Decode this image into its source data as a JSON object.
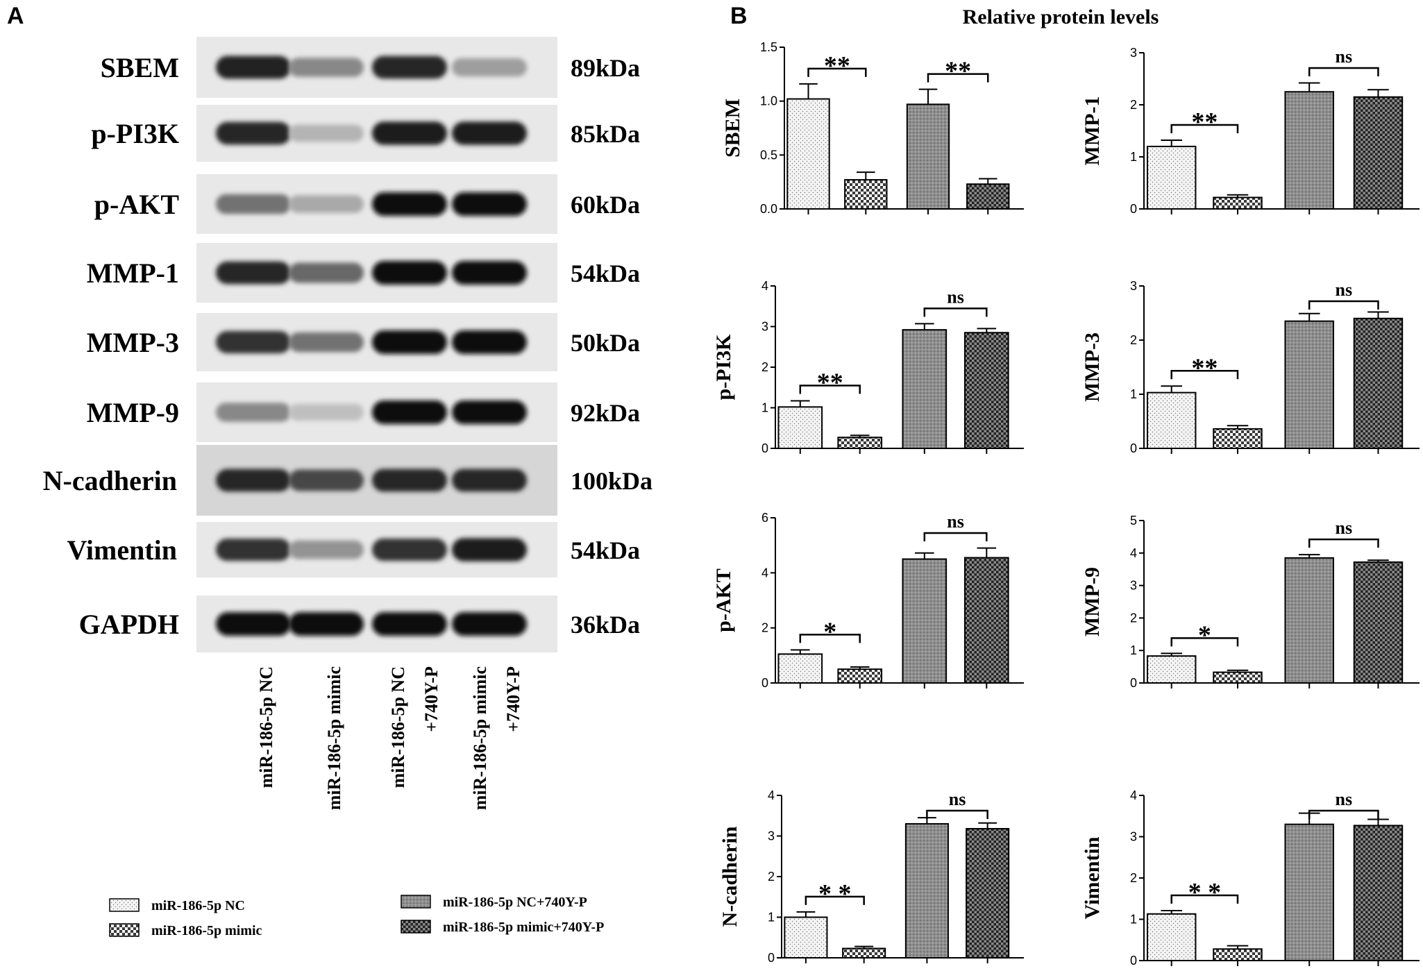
{
  "panels": {
    "a_label": "A",
    "b_label": "B",
    "b_title": "Relative protein levels"
  },
  "blot": {
    "rows": [
      {
        "protein": "SBEM",
        "kda": "89kDa",
        "intensity": [
          0.92,
          0.45,
          0.9,
          0.35
        ]
      },
      {
        "protein": "p-PI3K",
        "kda": "85kDa",
        "intensity": [
          0.9,
          0.25,
          0.95,
          0.95
        ]
      },
      {
        "protein": "p-AKT",
        "kda": "60kDa",
        "intensity": [
          0.55,
          0.3,
          1.0,
          1.0
        ]
      },
      {
        "protein": "MMP-1",
        "kda": "54kDa",
        "intensity": [
          0.9,
          0.6,
          1.0,
          1.0
        ]
      },
      {
        "protein": "MMP-3",
        "kda": "50kDa",
        "intensity": [
          0.85,
          0.55,
          1.0,
          1.0
        ]
      },
      {
        "protein": "MMP-9",
        "kda": "92kDa",
        "intensity": [
          0.45,
          0.2,
          1.0,
          1.0
        ]
      },
      {
        "protein": "N-cadherin",
        "kda": "100kDa",
        "intensity": [
          0.9,
          0.75,
          0.9,
          0.9
        ]
      },
      {
        "protein": "Vimentin",
        "kda": "54kDa",
        "intensity": [
          0.85,
          0.4,
          0.85,
          0.95
        ]
      },
      {
        "protein": "GAPDH",
        "kda": "36kDa",
        "intensity": [
          1.0,
          1.0,
          1.0,
          1.0
        ]
      }
    ],
    "lanes": [
      [
        "miR-186-5p NC"
      ],
      [
        "miR-186-5p mimic"
      ],
      [
        "miR-186-5p NC",
        "+740Y-P"
      ],
      [
        "miR-186-5p mimic",
        "+740Y-P"
      ]
    ]
  },
  "legend": [
    {
      "label": "miR-186-5p NC",
      "pattern": "pat0"
    },
    {
      "label": "miR-186-5p mimic",
      "pattern": "pat1"
    },
    {
      "label": "miR-186-5p NC+740Y-P",
      "pattern": "pat2"
    },
    {
      "label": "miR-186-5p mimic+740Y-P",
      "pattern": "pat3"
    }
  ],
  "chart_data": [
    {
      "type": "bar",
      "ylabel": "SBEM",
      "ylim": [
        0,
        1.5
      ],
      "yticks": [
        "0.0",
        "0.5",
        "1.0",
        "1.5"
      ],
      "values": [
        1.02,
        0.27,
        0.97,
        0.23
      ],
      "errors": [
        0.14,
        0.07,
        0.14,
        0.05
      ],
      "significance": [
        {
          "bars": [
            0,
            1
          ],
          "label": "**"
        },
        {
          "bars": [
            2,
            3
          ],
          "label": "**"
        }
      ]
    },
    {
      "type": "bar",
      "ylabel": "MMP-1",
      "ylim": [
        0,
        3
      ],
      "yticks": [
        "0",
        "1",
        "2",
        "3"
      ],
      "values": [
        1.2,
        0.22,
        2.25,
        2.15
      ],
      "errors": [
        0.12,
        0.05,
        0.17,
        0.14
      ],
      "significance": [
        {
          "bars": [
            0,
            1
          ],
          "label": "**"
        },
        {
          "bars": [
            2,
            3
          ],
          "label": "ns"
        }
      ]
    },
    {
      "type": "bar",
      "ylabel": "p-PI3K",
      "ylim": [
        0,
        4
      ],
      "yticks": [
        "0",
        "1",
        "2",
        "3",
        "4"
      ],
      "values": [
        1.02,
        0.27,
        2.92,
        2.85
      ],
      "errors": [
        0.15,
        0.05,
        0.15,
        0.1
      ],
      "significance": [
        {
          "bars": [
            0,
            1
          ],
          "label": "**"
        },
        {
          "bars": [
            2,
            3
          ],
          "label": "ns"
        }
      ]
    },
    {
      "type": "bar",
      "ylabel": "MMP-3",
      "ylim": [
        0,
        3
      ],
      "yticks": [
        "0",
        "1",
        "2",
        "3"
      ],
      "values": [
        1.03,
        0.36,
        2.35,
        2.4
      ],
      "errors": [
        0.12,
        0.06,
        0.14,
        0.12
      ],
      "significance": [
        {
          "bars": [
            0,
            1
          ],
          "label": "**"
        },
        {
          "bars": [
            2,
            3
          ],
          "label": "ns"
        }
      ]
    },
    {
      "type": "bar",
      "ylabel": "p-AKT",
      "ylim": [
        0,
        6
      ],
      "yticks": [
        "0",
        "2",
        "4",
        "6"
      ],
      "values": [
        1.05,
        0.5,
        4.5,
        4.55
      ],
      "errors": [
        0.15,
        0.08,
        0.22,
        0.35
      ],
      "significance": [
        {
          "bars": [
            0,
            1
          ],
          "label": "*"
        },
        {
          "bars": [
            2,
            3
          ],
          "label": "ns"
        }
      ]
    },
    {
      "type": "bar",
      "ylabel": "MMP-9",
      "ylim": [
        0,
        5
      ],
      "yticks": [
        "0",
        "1",
        "2",
        "3",
        "4",
        "5"
      ],
      "values": [
        0.83,
        0.33,
        3.85,
        3.72
      ],
      "errors": [
        0.08,
        0.06,
        0.1,
        0.06
      ],
      "significance": [
        {
          "bars": [
            0,
            1
          ],
          "label": "*"
        },
        {
          "bars": [
            2,
            3
          ],
          "label": "ns"
        }
      ]
    },
    {
      "type": "bar",
      "ylabel": "N-cadherin",
      "ylim": [
        0,
        4
      ],
      "yticks": [
        "0",
        "1",
        "2",
        "3",
        "4"
      ],
      "values": [
        1.0,
        0.23,
        3.3,
        3.18
      ],
      "errors": [
        0.13,
        0.05,
        0.15,
        0.14
      ],
      "significance": [
        {
          "bars": [
            0,
            1
          ],
          "label": "* *"
        },
        {
          "bars": [
            2,
            3
          ],
          "label": "ns"
        }
      ]
    },
    {
      "type": "bar",
      "ylabel": "Vimentin",
      "ylim": [
        0,
        4
      ],
      "yticks": [
        "0",
        "1",
        "2",
        "3",
        "4"
      ],
      "values": [
        1.13,
        0.28,
        3.3,
        3.27
      ],
      "errors": [
        0.08,
        0.08,
        0.27,
        0.15
      ],
      "significance": [
        {
          "bars": [
            0,
            1
          ],
          "label": "* *"
        },
        {
          "bars": [
            2,
            3
          ],
          "label": "ns"
        }
      ]
    }
  ]
}
